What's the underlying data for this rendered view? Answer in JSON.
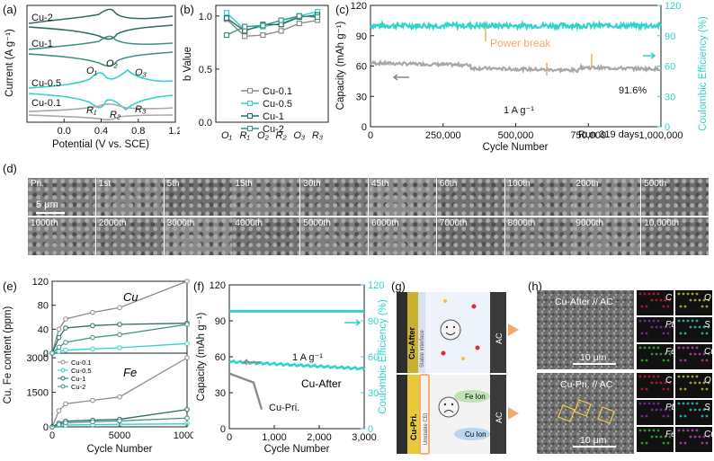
{
  "panel_labels": {
    "a": "(a)",
    "b": "(b)",
    "c": "(c)",
    "d": "(d)",
    "e": "(e)",
    "f": "(f)",
    "g": "(g)",
    "h": "(h)"
  },
  "chart_data": [
    {
      "panel": "a",
      "type": "line",
      "xlabel": "Potential (V vs. SCE)",
      "ylabel": "Current (A g⁻¹)",
      "xlim": [
        -0.4,
        1.2
      ],
      "xticks": [
        "0.0",
        "0.4",
        "0.8",
        "1.2"
      ],
      "series": [
        {
          "name": "Cu-2",
          "color": "#2e6b62"
        },
        {
          "name": "Cu-1",
          "color": "#3f8f85"
        },
        {
          "name": "Cu-0.5",
          "color": "#2fd3cb"
        },
        {
          "name": "Cu-0.1",
          "color": "#a8a8a8"
        }
      ],
      "annotations": [
        "O₁",
        "O₂",
        "O₃",
        "R₁",
        "R₂",
        "R₃"
      ]
    },
    {
      "panel": "b",
      "type": "line",
      "ylabel": "b Value",
      "categories": [
        "O₁",
        "R₁",
        "O₂",
        "R₂",
        "O₃",
        "R₃"
      ],
      "ylim": [
        0.0,
        1.1
      ],
      "yticks": [
        "0.0",
        "0.5",
        "1.0"
      ],
      "series": [
        {
          "name": "Cu-0.1",
          "color": "#8c8c8c",
          "values": [
            0.97,
            0.81,
            0.82,
            0.86,
            0.93,
            0.96
          ]
        },
        {
          "name": "Cu-0.5",
          "color": "#2fd3cb",
          "values": [
            1.03,
            0.87,
            0.9,
            0.93,
            1.0,
            1.04
          ]
        },
        {
          "name": "Cu-1",
          "color": "#2e6b62",
          "values": [
            0.98,
            0.86,
            0.92,
            0.92,
            0.99,
            1.01
          ]
        },
        {
          "name": "Cu-2",
          "color": "#3f8f85",
          "values": [
            0.82,
            0.9,
            0.91,
            0.96,
            1.0,
            0.99
          ]
        }
      ]
    },
    {
      "panel": "c",
      "type": "scatter",
      "xlabel": "Cycle Number",
      "ylabel": "Capacity (mAh g⁻¹)",
      "ylabel2": "Coulombic Efficiency (%)",
      "xlim": [
        0,
        1000000
      ],
      "ylim": [
        0,
        120
      ],
      "xticks": [
        "0",
        "250,000",
        "500,000",
        "750,000",
        "1,000,000"
      ],
      "yticks": [
        "0",
        "30",
        "60",
        "90",
        "120"
      ],
      "annotations": {
        "power_break": "Power break",
        "retention": "91.6%",
        "rate": "1 A g⁻¹",
        "run": "Run 319 days"
      },
      "series": [
        {
          "name": "Capacity",
          "color": "#a0a0a0"
        },
        {
          "name": "Coulombic Efficiency",
          "color": "#2fd3cb"
        }
      ]
    },
    {
      "panel": "e",
      "type": "line",
      "xlabel": "Cycle Number",
      "ylabel": "Cu, Fe content (ppm)",
      "x": [
        0,
        500,
        1000,
        3000,
        5000,
        10000
      ],
      "subplots": [
        {
          "title": "Cu",
          "ylim": [
            0,
            120
          ],
          "yticks": [
            "0",
            "40",
            "80",
            "120"
          ],
          "series": [
            {
              "name": "Cu-0.1",
              "values": [
                0,
                40,
                57,
                68,
                76,
                120
              ]
            },
            {
              "name": "Cu-0.5",
              "values": [
                0,
                3,
                5,
                7,
                9,
                16
              ]
            },
            {
              "name": "Cu-1",
              "values": [
                0,
                26,
                42,
                46,
                48,
                50
              ]
            },
            {
              "name": "Cu-2",
              "values": [
                0,
                10,
                18,
                26,
                31,
                48
              ]
            }
          ]
        },
        {
          "title": "Fe",
          "ylim": [
            0,
            3200
          ],
          "yticks": [
            "0",
            "1500",
            "3000"
          ],
          "series": [
            {
              "name": "Cu-0.1",
              "values": [
                0,
                700,
                1000,
                1150,
                1300,
                3000
              ]
            },
            {
              "name": "Cu-0.5",
              "values": [
                0,
                60,
                80,
                95,
                110,
                130
              ]
            },
            {
              "name": "Cu-1",
              "values": [
                0,
                160,
                250,
                290,
                330,
                750
              ]
            },
            {
              "name": "Cu-2",
              "values": [
                0,
                100,
                180,
                220,
                260,
                380
              ]
            }
          ]
        }
      ]
    },
    {
      "panel": "f",
      "type": "scatter",
      "xlabel": "Cycle Number",
      "ylabel": "Capacity (mAh g⁻¹)",
      "ylabel2": "Coulombic Efficiency (%)",
      "xlim": [
        0,
        3000
      ],
      "ylim": [
        0,
        120
      ],
      "xticks": [
        "0",
        "1,000",
        "2,000",
        "3,000"
      ],
      "yticks": [
        "0",
        "30",
        "60",
        "90",
        "120"
      ],
      "annotations": {
        "rate": "1 A g⁻¹",
        "after": "Cu-After",
        "pri": "Cu-Pri."
      }
    }
  ],
  "panel_d": {
    "row1": [
      "Pri.",
      "1st",
      "5th",
      "15th",
      "30th",
      "45th",
      "60th",
      "100th",
      "200th",
      "500th"
    ],
    "row2": [
      "1000th",
      "2000th",
      "3000th",
      "4000th",
      "5000th",
      "6000th",
      "7000th",
      "8000th",
      "9000th",
      "10,000th"
    ],
    "scalebar": "5 μm"
  },
  "panel_g": {
    "cu_after": "Cu-After",
    "cu_pri": "Cu-Pri.",
    "after_side": "Stable interface",
    "pri_side": "Unstable CEI",
    "fe_ion": "Fe Ion",
    "cu_ion": "Cu Ion",
    "ac": "AC"
  },
  "panel_h": {
    "top_title": "Cu-After // AC",
    "bottom_title": "Cu-Pri. // AC",
    "scalebar": "10 μm",
    "maps": [
      "C",
      "O",
      "Pt",
      "S",
      "Fe",
      "Cu"
    ]
  }
}
